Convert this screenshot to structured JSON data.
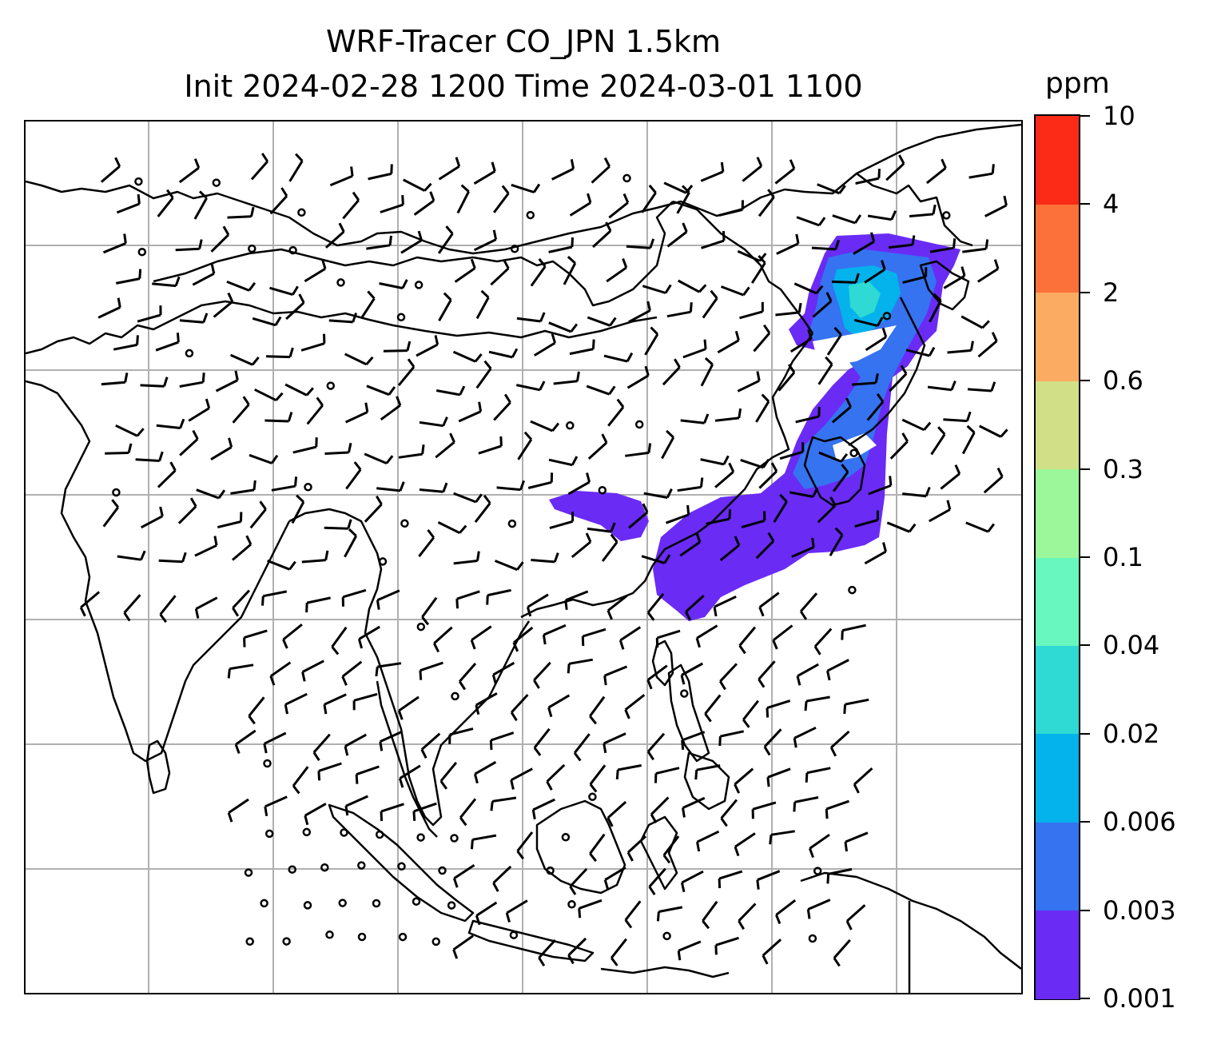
{
  "title": {
    "line1": "WRF-Tracer CO_JPN 1.5km",
    "line2": "Init 2024-02-28 1200 Time 2024-03-01 1100"
  },
  "colorbar": {
    "unit": "ppm",
    "levels": [
      "0.001",
      "0.003",
      "0.006",
      "0.02",
      "0.04",
      "0.1",
      "0.3",
      "0.6",
      "2",
      "4",
      "10"
    ],
    "colors": [
      "#6a2bf5",
      "#3573f1",
      "#04b2ec",
      "#2fd9d4",
      "#68f7bf",
      "#9bf799",
      "#d1e086",
      "#fcac62",
      "#fc7139",
      "#fc2b18"
    ]
  },
  "map": {
    "gridlines": true,
    "grid_color": "#b0b0b0",
    "coastline_color": "#000000",
    "wind_barb_color": "#000000",
    "tracer_plume_color": "#6a2bf5"
  }
}
